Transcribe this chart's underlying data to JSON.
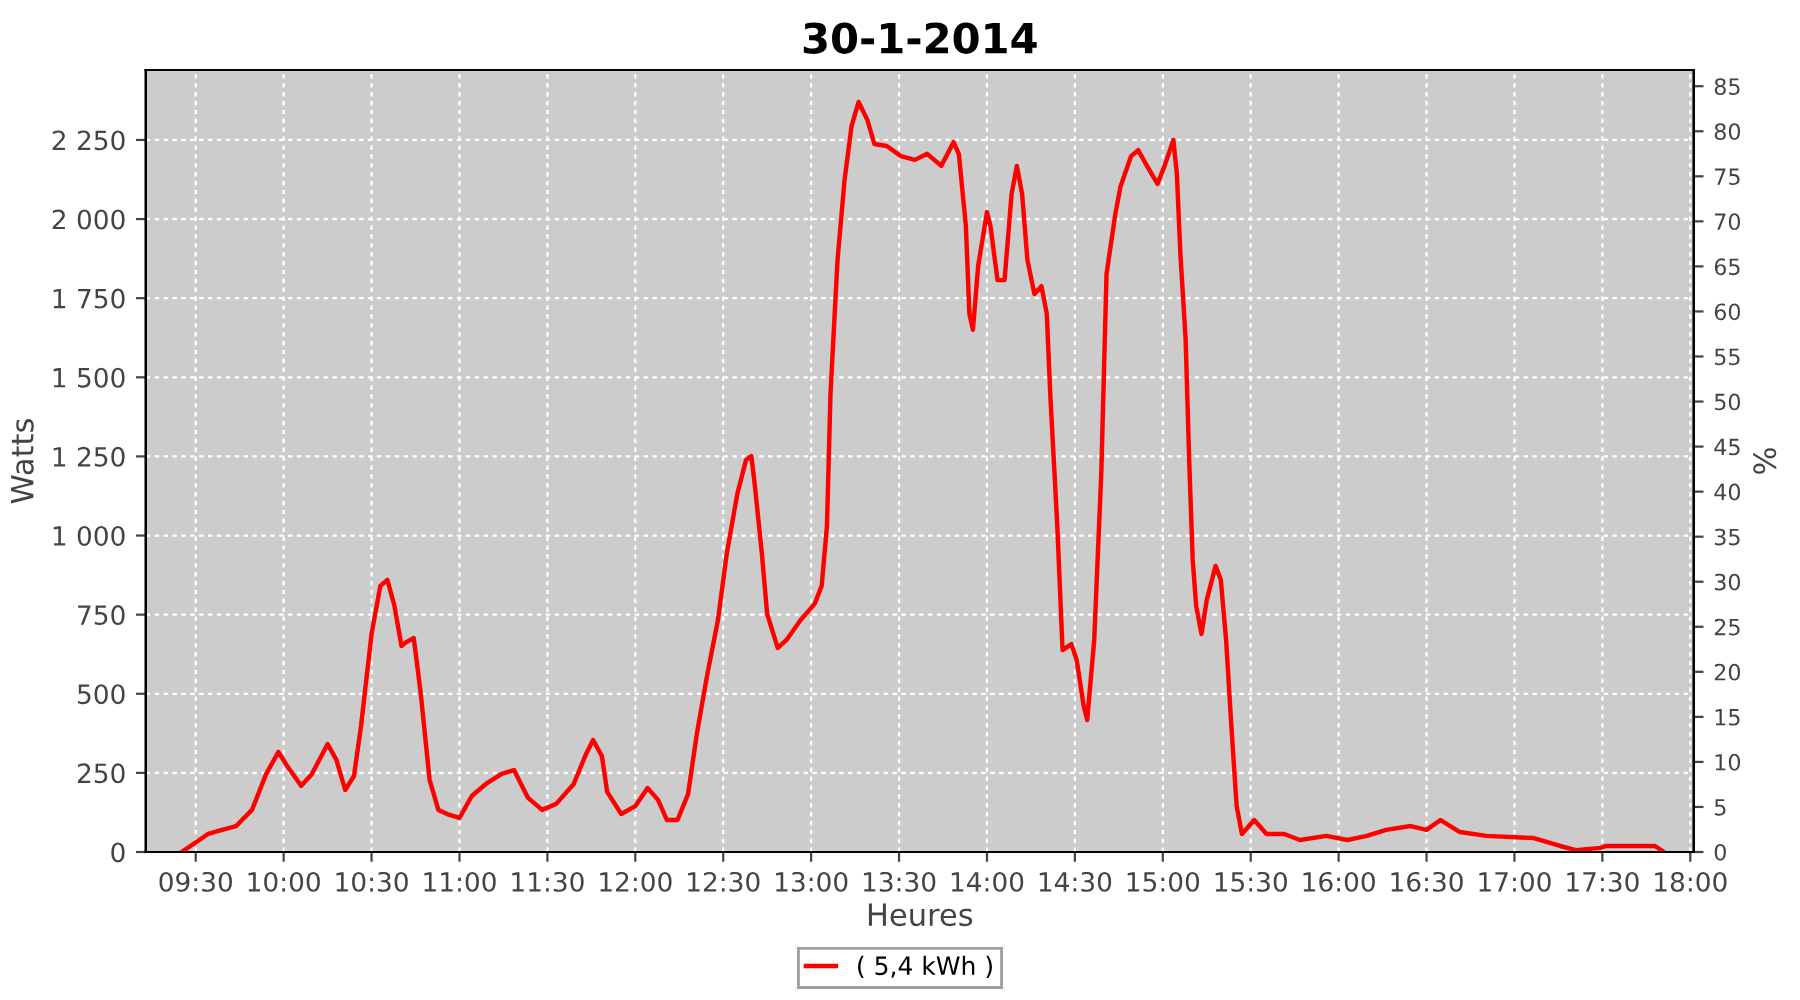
{
  "chart_data": {
    "type": "line",
    "title": "30-1-2014",
    "xlabel": "Heures",
    "ylabel": "Watts",
    "y2label": "%",
    "xlim": [
      9.216,
      18.02
    ],
    "xticks": [
      {
        "value": 9.5,
        "label": "09:30"
      },
      {
        "value": 10,
        "label": "10:00"
      },
      {
        "value": 10.5,
        "label": "10:30"
      },
      {
        "value": 11,
        "label": "11:00"
      },
      {
        "value": 11.5,
        "label": "11:30"
      },
      {
        "value": 12,
        "label": "12:00"
      },
      {
        "value": 12.5,
        "label": "12:30"
      },
      {
        "value": 13,
        "label": "13:00"
      },
      {
        "value": 13.5,
        "label": "13:30"
      },
      {
        "value": 14,
        "label": "14:00"
      },
      {
        "value": 14.5,
        "label": "14:30"
      },
      {
        "value": 15,
        "label": "15:00"
      },
      {
        "value": 15.5,
        "label": "15:30"
      },
      {
        "value": 16,
        "label": "16:00"
      },
      {
        "value": 16.5,
        "label": "16:30"
      },
      {
        "value": 17,
        "label": "17:00"
      },
      {
        "value": 17.5,
        "label": "17:30"
      },
      {
        "value": 18,
        "label": "18:00"
      }
    ],
    "ylim": [
      0,
      2471
    ],
    "yticks": [
      0,
      250,
      500,
      750,
      {
        "value": 1000,
        "label": "1 000"
      },
      {
        "value": 1250,
        "label": "1 250"
      },
      {
        "value": 1500,
        "label": "1 500"
      },
      {
        "value": 1750,
        "label": "1 750"
      },
      {
        "value": 2000,
        "label": "2 000"
      },
      {
        "value": 2250,
        "label": "2 250"
      }
    ],
    "y2lim": [
      0,
      86.8
    ],
    "y2ticks": [
      0,
      5,
      10,
      15,
      20,
      25,
      30,
      35,
      40,
      45,
      50,
      55,
      60,
      65,
      70,
      75,
      80,
      85
    ],
    "grid": true,
    "legend": "bottom",
    "marker": "none",
    "line_style": "solid",
    "series": [
      {
        "name": "( 5,4 kWh )",
        "color": "#ff0000",
        "x": [
          9.42,
          9.57,
          9.65,
          9.73,
          9.82,
          9.9,
          9.97,
          10.02,
          10.1,
          10.16,
          10.25,
          10.3,
          10.35,
          10.4,
          10.44,
          10.5,
          10.55,
          10.59,
          10.63,
          10.67,
          10.7,
          10.74,
          10.78,
          10.83,
          10.88,
          10.93,
          11.0,
          11.07,
          11.15,
          11.24,
          11.31,
          11.39,
          11.47,
          11.55,
          11.65,
          11.72,
          11.76,
          11.81,
          11.84,
          11.92,
          12.0,
          12.07,
          12.13,
          12.18,
          12.24,
          12.3,
          12.35,
          12.41,
          12.47,
          12.52,
          12.58,
          12.63,
          12.66,
          12.68,
          12.72,
          12.75,
          12.81,
          12.86,
          12.94,
          13.02,
          13.06,
          13.09,
          13.11,
          13.15,
          13.19,
          13.23,
          13.27,
          13.32,
          13.36,
          13.43,
          13.51,
          13.59,
          13.66,
          13.74,
          13.81,
          13.84,
          13.88,
          13.9,
          13.92,
          13.95,
          14.0,
          14.02,
          14.06,
          14.1,
          14.14,
          14.17,
          14.2,
          14.23,
          14.27,
          14.31,
          14.34,
          14.36,
          14.4,
          14.43,
          14.48,
          14.51,
          14.55,
          14.57,
          14.61,
          14.65,
          14.68,
          14.73,
          14.76,
          14.82,
          14.86,
          14.91,
          14.97,
          15.01,
          15.06,
          15.08,
          15.1,
          15.13,
          15.15,
          15.17,
          15.19,
          15.22,
          15.25,
          15.3,
          15.33,
          15.36,
          15.39,
          15.42,
          15.45,
          15.52,
          15.59,
          15.69,
          15.78,
          15.93,
          16.05,
          16.16,
          16.27,
          16.41,
          16.5,
          16.58,
          16.69,
          16.84,
          17.11,
          17.26,
          17.35,
          17.49,
          17.52,
          17.8,
          17.85
        ],
        "values": [
          0,
          57,
          70,
          82,
          133,
          246,
          316,
          272,
          209,
          246,
          341,
          291,
          196,
          240,
          398,
          689,
          841,
          860,
          778,
          651,
          664,
          676,
          499,
          228,
          133,
          120,
          108,
          177,
          215,
          247,
          259,
          171,
          133,
          152,
          215,
          310,
          354,
          303,
          190,
          120,
          145,
          202,
          164,
          101,
          101,
          183,
          373,
          563,
          733,
          942,
          1131,
          1239,
          1251,
          1157,
          942,
          752,
          645,
          670,
          733,
          784,
          841,
          1030,
          1447,
          1870,
          2123,
          2294,
          2370,
          2313,
          2237,
          2231,
          2199,
          2187,
          2206,
          2168,
          2243,
          2206,
          1978,
          1701,
          1650,
          1852,
          2022,
          1978,
          1807,
          1807,
          2079,
          2168,
          2079,
          1871,
          1763,
          1788,
          1701,
          1447,
          1030,
          638,
          657,
          607,
          462,
          417,
          670,
          1194,
          1826,
          2016,
          2104,
          2199,
          2218,
          2168,
          2111,
          2168,
          2250,
          2143,
          1890,
          1618,
          1239,
          923,
          777,
          689,
          796,
          904,
          860,
          670,
          398,
          145,
          57,
          101,
          57,
          57,
          38,
          51,
          38,
          51,
          70,
          82,
          70,
          101,
          63,
          51,
          44,
          19,
          6,
          13,
          19,
          19,
          0
        ]
      }
    ]
  }
}
